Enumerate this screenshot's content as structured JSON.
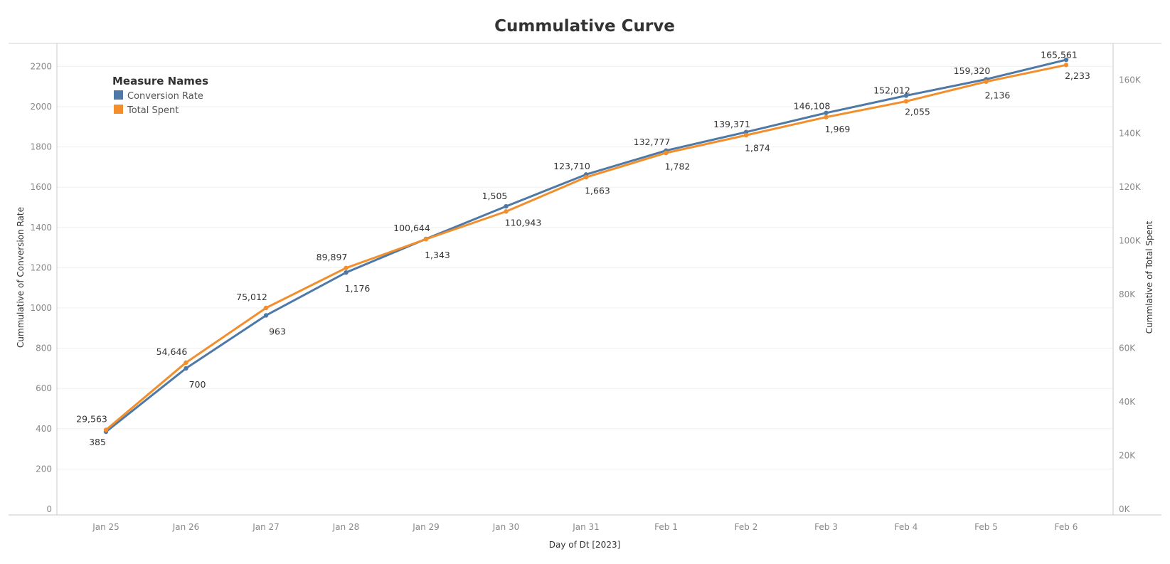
{
  "chart_data": {
    "type": "line",
    "title": "Cummulative Curve",
    "xlabel": "Day of Dt [2023]",
    "ylabel_left": "Cummulative of Conversion Rate",
    "ylabel_right": "Cummlative of Total Spent",
    "categories": [
      "Jan 25",
      "Jan 26",
      "Jan 27",
      "Jan 28",
      "Jan 29",
      "Jan 30",
      "Jan 31",
      "Feb 1",
      "Feb 2",
      "Feb 3",
      "Feb 4",
      "Feb 5",
      "Feb 6"
    ],
    "ylim_left": [
      0,
      2300
    ],
    "ylim_right": [
      0,
      172500
    ],
    "yticks_left": [
      "0",
      "200",
      "400",
      "600",
      "800",
      "1000",
      "1200",
      "1400",
      "1600",
      "1800",
      "2000",
      "2200"
    ],
    "yticks_right": [
      "0K",
      "20K",
      "40K",
      "60K",
      "80K",
      "100K",
      "120K",
      "140K",
      "160K"
    ],
    "grid": true,
    "legend": {
      "title": "Measure Names",
      "placement": "top-left"
    },
    "series": [
      {
        "name": "Conversion Rate",
        "axis": "left",
        "color": "#4e79a7",
        "values": [
          385,
          700,
          963,
          1176,
          1343,
          1505,
          1663,
          1782,
          1874,
          1969,
          2055,
          2136,
          2233
        ],
        "labels": [
          "385",
          "700",
          "963",
          "1,176",
          "1,343",
          "1,505",
          "1,663",
          "1,782",
          "1,874",
          "1,969",
          "2,055",
          "2,136",
          "2,233"
        ]
      },
      {
        "name": "Total Spent",
        "axis": "right",
        "color": "#f28e2b",
        "values": [
          29563,
          54646,
          75012,
          89897,
          100644,
          110943,
          123710,
          132777,
          139371,
          146108,
          152012,
          159320,
          165561
        ],
        "labels": [
          "29,563",
          "54,646",
          "75,012",
          "89,897",
          "100,644",
          "110,943",
          "123,710",
          "132,777",
          "139,371",
          "146,108",
          "152,012",
          "159,320",
          "165,561"
        ]
      }
    ]
  }
}
